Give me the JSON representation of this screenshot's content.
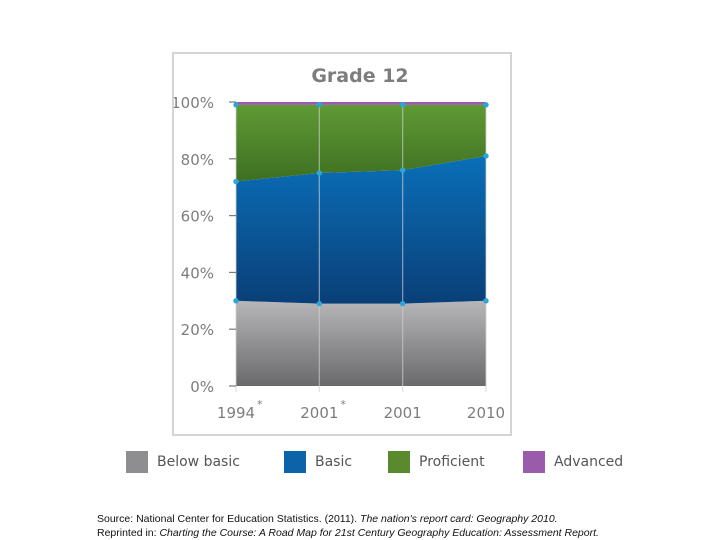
{
  "chart_data": {
    "type": "area",
    "stacked": true,
    "title": "Grade 12",
    "categories": [
      "1994",
      "2001",
      "2001",
      "2010"
    ],
    "category_marks": [
      "*",
      "*",
      "",
      ""
    ],
    "y_ticks": [
      "0%",
      "20%",
      "40%",
      "60%",
      "80%",
      "100%"
    ],
    "ylim": [
      0,
      100
    ],
    "grid": false,
    "legend_position": "bottom",
    "series": [
      {
        "name": "Below basic",
        "values": [
          30,
          29,
          29,
          30
        ],
        "color": "#8a8a8c"
      },
      {
        "name": "Basic",
        "values": [
          42,
          46,
          47,
          51
        ],
        "color": "#0b63a8"
      },
      {
        "name": "Proficient",
        "values": [
          27,
          24,
          23,
          18
        ],
        "color": "#5a8a2e"
      },
      {
        "name": "Advanced",
        "values": [
          1,
          1,
          1,
          1
        ],
        "color": "#9b5bab"
      }
    ],
    "marker_color": "#2aa7d6"
  },
  "source": {
    "line1_prefix": "Source: National Center for Education Statistics. (2011). ",
    "line1_italic": "The nation's report card: Geography 2010.",
    "line2_prefix": "Reprinted in: ",
    "line2_italic": "Charting the Course: A Road Map for 21st Century Geography Education: Assessment Report."
  }
}
